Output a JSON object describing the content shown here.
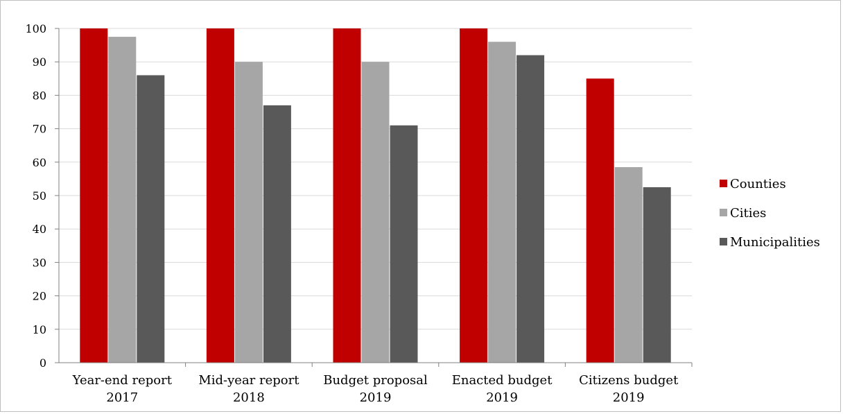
{
  "chart_data": {
    "type": "bar",
    "categories": [
      [
        "Year-end report",
        "2017"
      ],
      [
        "Mid-year report",
        "2018"
      ],
      [
        "Budget proposal",
        "2019"
      ],
      [
        "Enacted budget",
        "2019"
      ],
      [
        "Citizens budget",
        "2019"
      ]
    ],
    "series": [
      {
        "name": "Counties",
        "color": "#c00000",
        "values": [
          100,
          100,
          100,
          100,
          85
        ]
      },
      {
        "name": "Cities",
        "color": "#a6a6a6",
        "values": [
          97.5,
          90,
          90,
          96,
          58.5
        ]
      },
      {
        "name": "Municipalities",
        "color": "#595959",
        "values": [
          86,
          77,
          71,
          92,
          52.5
        ]
      }
    ],
    "ylim": [
      0,
      100
    ],
    "yticks": [
      0,
      10,
      20,
      30,
      40,
      50,
      60,
      70,
      80,
      90,
      100
    ],
    "ytick_labels": [
      "0",
      "10",
      "20",
      "30",
      "40",
      "50",
      "60",
      "70",
      "80",
      "90",
      "100"
    ],
    "grid": true,
    "legend_position": "right",
    "title": "",
    "xlabel": "",
    "ylabel": ""
  }
}
